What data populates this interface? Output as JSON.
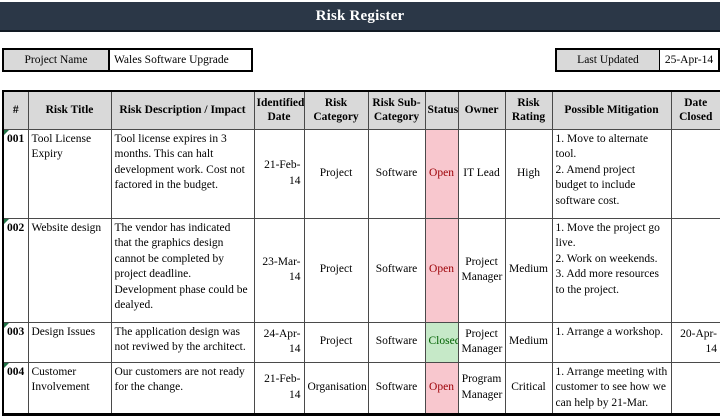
{
  "title": "Risk Register",
  "meta": {
    "project_name_label": "Project Name",
    "project_name_value": "Wales Software Upgrade",
    "last_updated_label": "Last Updated",
    "last_updated_value": "25-Apr-14"
  },
  "colors": {
    "titlebar_bg": "#2b3747",
    "header_cell_bg": "#d9d9d9",
    "status_open_bg": "#f8c7ce",
    "status_open_text": "#9c0006",
    "status_closed_bg": "#c6e9c8",
    "status_closed_text": "#006100",
    "cell_flag_green": "#217346"
  },
  "table": {
    "columns": [
      "#",
      "Risk Title",
      "Risk Description / Impact",
      "Identified Date",
      "Risk Category",
      "Risk Sub-Category",
      "Status",
      "Owner",
      "Risk Rating",
      "Possible Mitigation",
      "Date Closed"
    ],
    "rows": [
      {
        "id": "001",
        "title": "Tool License Expiry",
        "description": "Tool license expires in 3 months. This can halt development work. Cost not factored in the budget.",
        "identified": "21-Feb-14",
        "category": "Project",
        "subcategory": "Software",
        "status": "Open",
        "owner": "IT Lead",
        "rating": "High",
        "mitigation": "1. Move to alternate tool.\n2. Amend project budget to include software cost.",
        "closed": ""
      },
      {
        "id": "002",
        "title": "Website design",
        "description": "The vendor has indicated that the graphics design cannot be completed by project deadline. Development phase could be dealyed.",
        "identified": "23-Mar-14",
        "category": "Project",
        "subcategory": "Software",
        "status": "Open",
        "owner": "Project Manager",
        "rating": "Medium",
        "mitigation": "1. Move the project go live.\n2. Work on weekends.\n3. Add more resources to the project.",
        "closed": ""
      },
      {
        "id": "003",
        "title": "Design Issues",
        "description": "The application design was not reviwed by the architect.",
        "identified": "24-Apr-14",
        "category": "Project",
        "subcategory": "Software",
        "status": "Closed",
        "owner": "Project Manager",
        "rating": "Medium",
        "mitigation": "1. Arrange a workshop.",
        "closed": "20-Apr-14"
      },
      {
        "id": "004",
        "title": "Customer Involvement",
        "description": "Our customers are not ready for the change.",
        "identified": "21-Feb-14",
        "category": "Organisation",
        "subcategory": "Software",
        "status": "Open",
        "owner": "Program Manager",
        "rating": "Critical",
        "mitigation": "1. Arrange meeting with customer to see how we can help by 21-Mar.",
        "closed": ""
      }
    ]
  }
}
